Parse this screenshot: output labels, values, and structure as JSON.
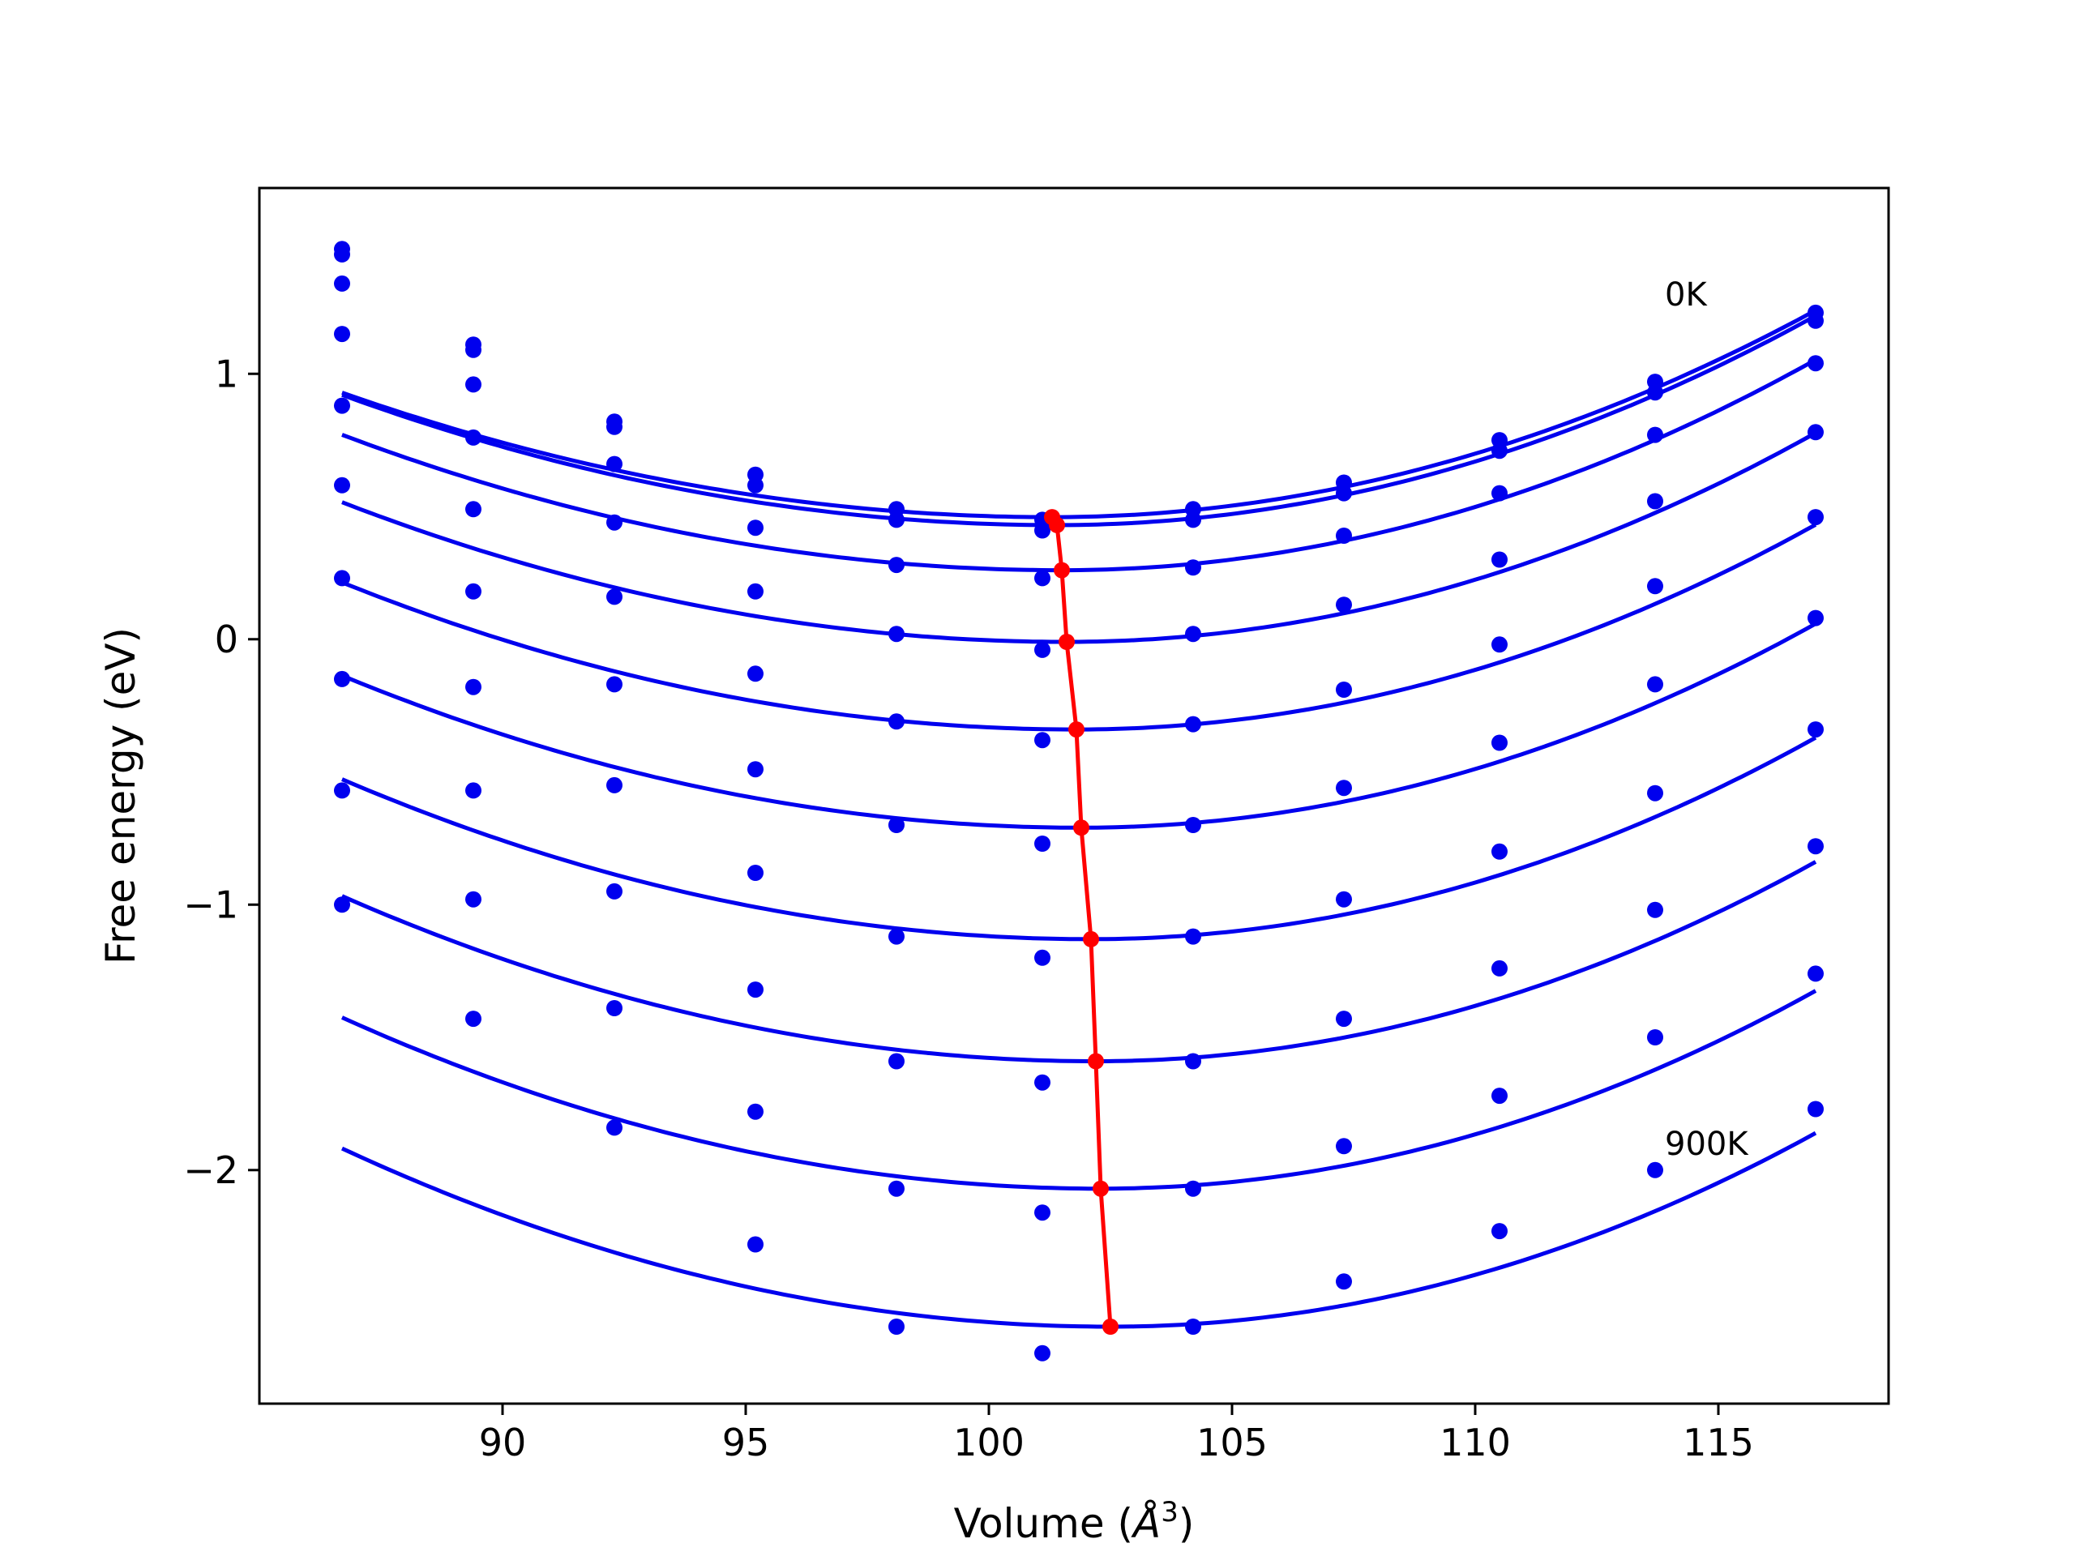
{
  "chart_data": {
    "type": "scatter",
    "xlabel_main": "Volume (",
    "xlabel_unit": "Å",
    "xlabel_exp": "3",
    "xlabel_close": ")",
    "ylabel": "Free energy (eV)",
    "xlim": [
      85.0,
      118.5
    ],
    "ylim": [
      -2.88,
      1.7
    ],
    "xticks": [
      90,
      95,
      100,
      105,
      110,
      115
    ],
    "xtick_labels": [
      "90",
      "95",
      "100",
      "105",
      "110",
      "115"
    ],
    "yticks": [
      -2,
      -1,
      0,
      1
    ],
    "ytick_labels": [
      "−2",
      "−1",
      "0",
      "1"
    ],
    "grid": false,
    "annotations": [
      {
        "text": "0K",
        "x": 113.9,
        "y": 1.3
      },
      {
        "text": "900K",
        "x": 113.9,
        "y": -1.9
      }
    ],
    "colors": {
      "series": "#0000ee",
      "minimum_line": "#ff0000",
      "frame": "#000000"
    },
    "volumes": [
      86.7,
      89.4,
      92.3,
      95.2,
      98.1,
      101.1,
      104.2,
      107.3,
      110.5,
      113.7,
      117.0
    ],
    "series": [
      {
        "points": [
          1.47,
          1.11,
          0.82,
          0.62,
          0.49,
          0.45,
          0.49,
          0.59,
          0.75,
          0.97,
          1.23
        ],
        "fit": {
          "c": 0.46,
          "vmin": 101.3,
          "a_left": 0.0022,
          "a_right": 0.00316
        }
      },
      {
        "points": [
          1.45,
          1.09,
          0.8,
          0.58,
          0.45,
          0.41,
          0.45,
          0.55,
          0.71,
          0.93,
          1.2
        ],
        "fit": {
          "c": 0.43,
          "vmin": 101.4,
          "a_left": 0.00227,
          "a_right": 0.00324
        }
      },
      {
        "points": [
          1.34,
          0.96,
          0.66,
          0.42,
          0.28,
          0.23,
          0.27,
          0.39,
          0.55,
          0.77,
          1.04
        ],
        "fit": {
          "c": 0.26,
          "vmin": 101.5,
          "a_left": 0.00233,
          "a_right": 0.0033
        }
      },
      {
        "points": [
          1.15,
          0.76,
          0.44,
          0.18,
          0.02,
          -0.04,
          0.02,
          0.13,
          0.3,
          0.52,
          0.78
        ],
        "fit": {
          "c": -0.01,
          "vmin": 101.6,
          "a_left": 0.00237,
          "a_right": 0.00332
        }
      },
      {
        "points": [
          0.88,
          0.49,
          0.16,
          -0.13,
          -0.31,
          -0.38,
          -0.32,
          -0.19,
          -0.02,
          0.2,
          0.46
        ],
        "fit": {
          "c": -0.34,
          "vmin": 101.8,
          "a_left": 0.00243,
          "a_right": 0.00334
        }
      },
      {
        "points": [
          0.58,
          0.18,
          -0.17,
          -0.49,
          -0.7,
          -0.77,
          -0.7,
          -0.56,
          -0.39,
          -0.17,
          0.08
        ],
        "fit": {
          "c": -0.71,
          "vmin": 101.9,
          "a_left": 0.00248,
          "a_right": 0.00337
        }
      },
      {
        "points": [
          0.23,
          -0.18,
          -0.55,
          -0.88,
          -1.12,
          -1.2,
          -1.12,
          -0.98,
          -0.8,
          -0.58,
          -0.34
        ],
        "fit": {
          "c": -1.13,
          "vmin": 102.1,
          "a_left": 0.00254,
          "a_right": 0.00342
        }
      },
      {
        "points": [
          -0.15,
          -0.57,
          -0.95,
          -1.32,
          -1.59,
          -1.67,
          -1.59,
          -1.43,
          -1.24,
          -1.02,
          -0.78
        ],
        "fit": {
          "c": -1.59,
          "vmin": 102.2,
          "a_left": 0.00259,
          "a_right": 0.00343
        }
      },
      {
        "points": [
          -0.57,
          -0.98,
          -1.39,
          -1.78,
          -2.07,
          -2.16,
          -2.07,
          -1.91,
          -1.72,
          -1.5,
          -1.26
        ],
        "fit": {
          "c": -2.07,
          "vmin": 102.3,
          "a_left": 0.00265,
          "a_right": 0.00345
        }
      },
      {
        "points": [
          -1.0,
          -1.43,
          -1.84,
          -2.28,
          -2.59,
          -2.69,
          -2.59,
          -2.42,
          -2.23,
          -2.0,
          -1.77
        ],
        "fit": {
          "c": -2.59,
          "vmin": 102.5,
          "a_left": 0.00269,
          "a_right": 0.00347
        }
      }
    ],
    "minimum_line": {
      "x": [
        101.3,
        101.4,
        101.5,
        101.6,
        101.8,
        101.9,
        102.1,
        102.2,
        102.3,
        102.5
      ],
      "y": [
        0.46,
        0.43,
        0.26,
        -0.01,
        -0.34,
        -0.71,
        -1.13,
        -1.59,
        -2.07,
        -2.59
      ]
    }
  }
}
